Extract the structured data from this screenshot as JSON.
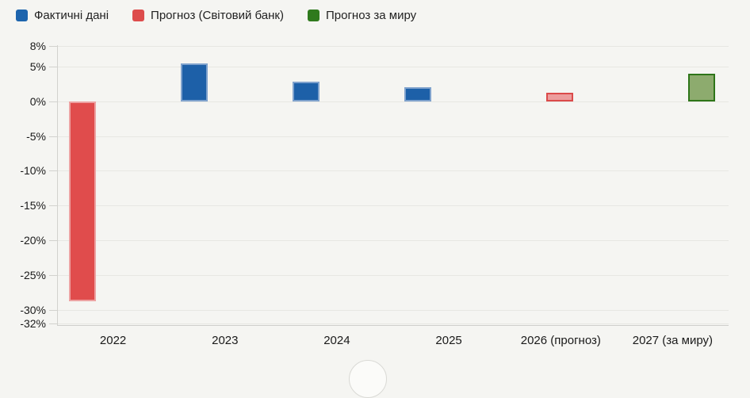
{
  "chart_data": {
    "type": "bar",
    "title": "",
    "categories": [
      "2022",
      "2023",
      "2024",
      "2025",
      "2026 (прогноз)",
      "2027 (за миру)"
    ],
    "series": [
      {
        "name": "Фактичні дані",
        "color": "#1d64ad",
        "values": [
          -28.8,
          5.5,
          2.9,
          2.0,
          null,
          null
        ]
      },
      {
        "name": "Прогноз (Світовий банк)",
        "color": "#dd4c4c",
        "values": [
          null,
          null,
          null,
          null,
          1.2,
          null
        ]
      },
      {
        "name": "Прогноз за миру",
        "color": "#2f7a1d",
        "values": [
          null,
          null,
          null,
          null,
          null,
          4.0
        ]
      }
    ],
    "bars": [
      {
        "category": "2022",
        "value": -28.8,
        "series": 0,
        "fill": "#e04c4c",
        "border": "#eda2a2"
      },
      {
        "category": "2023",
        "value": 5.5,
        "series": 0,
        "fill": "#1d60a8",
        "border": "#7fa2cd"
      },
      {
        "category": "2024",
        "value": 2.9,
        "series": 0,
        "fill": "#1d60a8",
        "border": "#7fa2cd"
      },
      {
        "category": "2025",
        "value": 2.0,
        "series": 0,
        "fill": "#1d60a8",
        "border": "#7fa2cd"
      },
      {
        "category": "2026 (прогноз)",
        "value": 1.2,
        "series": 1,
        "fill": "#ec9d9d",
        "border": "#db4a4a"
      },
      {
        "category": "2027 (за миру)",
        "value": 4.0,
        "series": 2,
        "fill": "#8dab6e",
        "border": "#2e7519"
      }
    ],
    "yticks": [
      8,
      5,
      0,
      -5,
      -10,
      -15,
      -20,
      -25,
      -30,
      -32
    ],
    "ytick_suffix": "%",
    "ylim": [
      -32,
      8.1
    ],
    "grid": true,
    "legend_position": "top-left",
    "xlabel": "",
    "ylabel": ""
  }
}
